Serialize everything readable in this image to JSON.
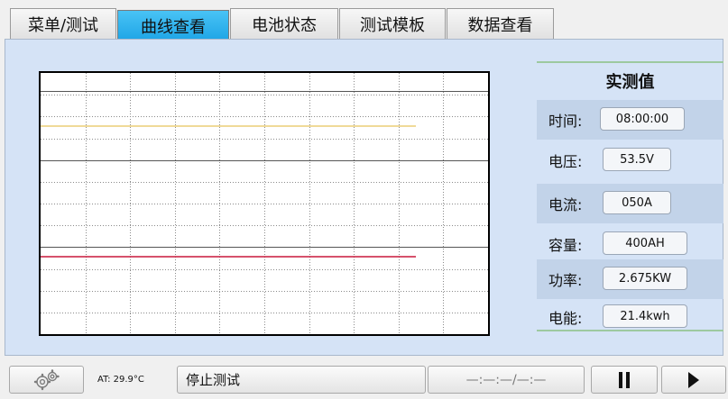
{
  "tabs": [
    {
      "label": "菜单/测试",
      "active": false
    },
    {
      "label": "曲线查看",
      "active": true
    },
    {
      "label": "电池状态",
      "active": false
    },
    {
      "label": "测试模板",
      "active": false
    },
    {
      "label": "数据查看",
      "active": false
    }
  ],
  "readout": {
    "title": "实测值",
    "rows": [
      {
        "label": "时间:",
        "value": "08:00:00"
      },
      {
        "label": "电压:",
        "value": "53.5V"
      },
      {
        "label": "电流:",
        "value": "050A"
      },
      {
        "label": "容量:",
        "value": "400AH"
      },
      {
        "label": "功率:",
        "value": "2.675KW"
      },
      {
        "label": "电能:",
        "value": "21.4kwh"
      }
    ]
  },
  "status": {
    "settings_icon": "gears-icon",
    "ambient_temp": "AT: 29.9°C",
    "message": "停止测试",
    "timer": "—:—:—/—:—",
    "pause_icon": "pause-icon",
    "play_icon": "play-icon"
  },
  "colors": {
    "active_tab": "#1ea5e6",
    "panel_bg": "#d5e3f6",
    "yellow_trace": "#e8c35a",
    "red_trace": "#c8193c",
    "frame": "#000000"
  }
}
